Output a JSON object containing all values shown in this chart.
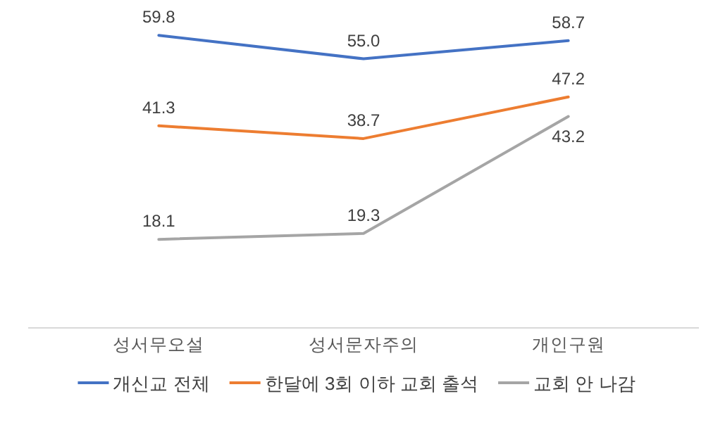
{
  "chart_data": {
    "type": "line",
    "categories": [
      "성서무오설",
      "성서문자주의",
      "개인구원"
    ],
    "series": [
      {
        "name": "개신교 전체",
        "color": "#4472c4",
        "values": [
          59.8,
          55.0,
          58.7
        ],
        "value_labels": [
          "59.8",
          "55.0",
          "58.7"
        ]
      },
      {
        "name": "한달에 3회 이하 교회 출석",
        "color": "#ed7d31",
        "values": [
          41.3,
          38.7,
          47.2
        ],
        "value_labels": [
          "41.3",
          "38.7",
          "47.2"
        ]
      },
      {
        "name": "교회 안 나감",
        "color": "#a5a5a5",
        "values": [
          18.1,
          19.3,
          43.2
        ],
        "value_labels": [
          "18.1",
          "19.3",
          "43.2"
        ]
      }
    ],
    "tick_labels": "x",
    "legend": "bottom"
  }
}
